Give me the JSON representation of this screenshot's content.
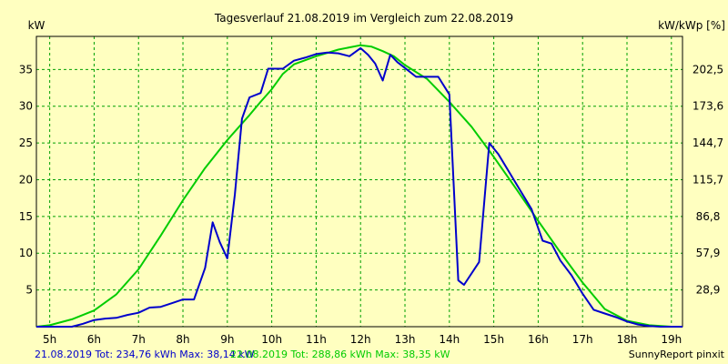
{
  "chart_data": {
    "type": "line",
    "title": "Tagesverlauf 21.08.2019 im Vergleich zum 22.08.2019",
    "ylabel_left": "kW",
    "ylabel_right": "kW/kWp [%]",
    "x_ticks": [
      "5h",
      "6h",
      "7h",
      "8h",
      "9h",
      "10h",
      "11h",
      "12h",
      "13h",
      "14h",
      "15h",
      "16h",
      "17h",
      "18h",
      "19h"
    ],
    "xlim": [
      4.7,
      19.25
    ],
    "ylim": [
      0,
      39.5
    ],
    "y_ticks": [
      5,
      10,
      15,
      20,
      25,
      30,
      35
    ],
    "y_ticks_right": [
      "28,9",
      "57,9",
      "86,8",
      "115,7",
      "144,7",
      "173,6",
      "202,5"
    ],
    "grid": true,
    "colors": {
      "series1": "#0000cc",
      "series2": "#00cc00",
      "grid": "#00a000",
      "background": "#ffffc0"
    },
    "series": [
      {
        "color": "#0000cc",
        "x": [
          4.7,
          5.5,
          5.75,
          6.0,
          6.25,
          6.5,
          6.75,
          7.0,
          7.25,
          7.5,
          7.75,
          8.0,
          8.25,
          8.5,
          8.67,
          8.83,
          9.0,
          9.17,
          9.33,
          9.5,
          9.75,
          9.92,
          10.08,
          10.25,
          10.5,
          10.75,
          11.0,
          11.25,
          11.5,
          11.75,
          12.0,
          12.17,
          12.33,
          12.5,
          12.67,
          12.83,
          13.0,
          13.25,
          13.5,
          13.75,
          14.0,
          14.2,
          14.33,
          14.67,
          14.9,
          15.1,
          15.35,
          15.6,
          15.85,
          16.1,
          16.3,
          16.5,
          16.75,
          17.0,
          17.25,
          17.5,
          17.75,
          18.0,
          18.25,
          18.5,
          18.75,
          19.0,
          19.25
        ],
        "y": [
          0,
          0,
          0.4,
          0.9,
          1.1,
          1.2,
          1.6,
          1.9,
          2.6,
          2.7,
          3.2,
          3.7,
          3.7,
          8.0,
          14.2,
          11.5,
          9.3,
          18.0,
          28.3,
          31.2,
          31.8,
          35.1,
          35.1,
          35.1,
          36.2,
          36.6,
          37.1,
          37.3,
          37.2,
          36.8,
          37.9,
          37.0,
          35.8,
          33.5,
          37.0,
          36.0,
          35.2,
          34.0,
          34.0,
          34.0,
          31.6,
          6.3,
          5.7,
          8.8,
          25.0,
          23.5,
          21.0,
          18.5,
          16.0,
          11.7,
          11.3,
          9.0,
          7.0,
          4.5,
          2.3,
          1.8,
          1.3,
          0.7,
          0.3,
          0.1,
          0,
          0,
          0
        ]
      },
      {
        "color": "#00cc00",
        "x": [
          4.7,
          5.0,
          5.5,
          6.0,
          6.5,
          7.0,
          7.5,
          8.0,
          8.5,
          9.0,
          9.5,
          9.75,
          10.0,
          10.25,
          10.5,
          11.0,
          11.5,
          12.0,
          12.25,
          12.5,
          12.75,
          13.0,
          13.5,
          14.0,
          14.5,
          15.0,
          15.5,
          16.0,
          16.5,
          17.0,
          17.5,
          18.0,
          18.5,
          19.0,
          19.25
        ],
        "y": [
          0,
          0.2,
          1.0,
          2.2,
          4.4,
          7.8,
          12.4,
          17.2,
          21.6,
          25.4,
          28.8,
          30.6,
          32.3,
          34.4,
          35.7,
          36.8,
          37.7,
          38.3,
          38.1,
          37.5,
          36.8,
          35.6,
          33.7,
          30.6,
          27.2,
          23.1,
          18.8,
          14.4,
          10.1,
          6.0,
          2.4,
          0.8,
          0.2,
          0,
          0
        ]
      }
    ]
  },
  "footer": {
    "series1_summary": "21.08.2019 Tot: 234,76 kWh Max: 38,14 kW",
    "series2_summary": "22.08.2019 Tot: 288,86 kWh Max: 38,35 kW",
    "credit": "SunnyReport pinxit"
  }
}
